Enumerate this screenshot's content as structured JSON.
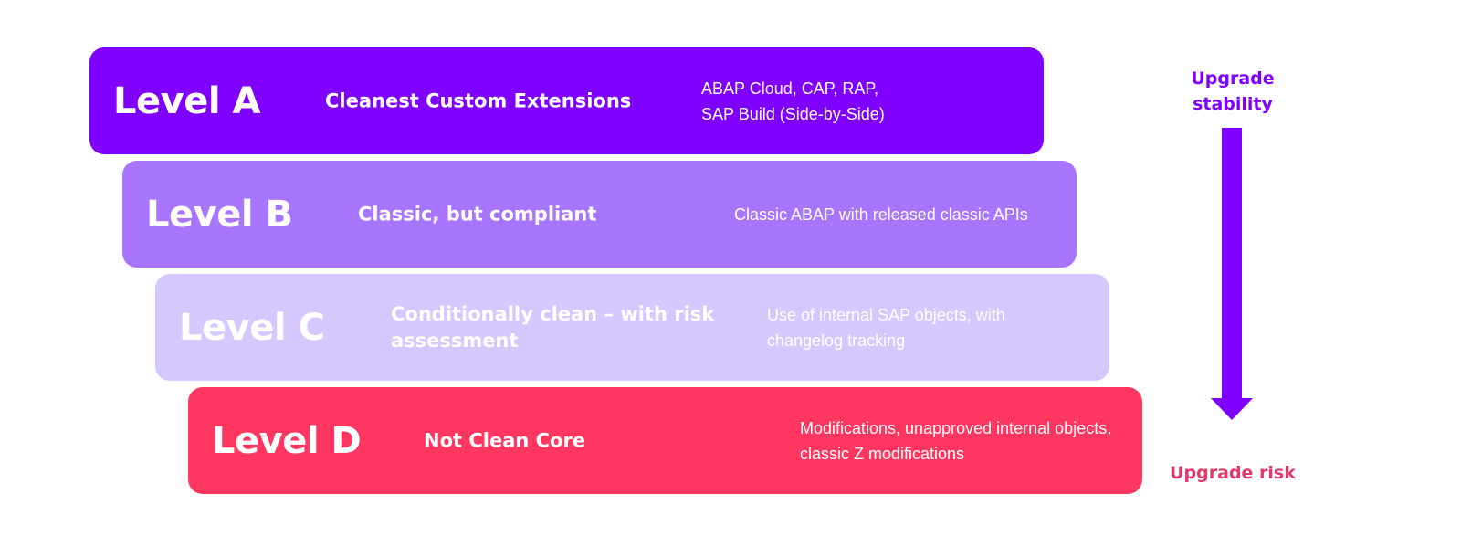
{
  "levels": [
    {
      "name": "Level A",
      "description": "Cleanest Custom Extensions",
      "detail": "ABAP Cloud, CAP, RAP, SAP Build (Side-by-Side)",
      "color": "#8000ff"
    },
    {
      "name": "Level B",
      "description": "Classic, but compliant",
      "detail": "Classic ABAP with released classic APIs",
      "color": "#a775ff"
    },
    {
      "name": "Level C",
      "description": "Conditionally clean – with risk assessment",
      "detail": "Use of internal SAP objects, with changelog tracking",
      "color": "#d6c7ff"
    },
    {
      "name": "Level D",
      "description": "Not Clean Core",
      "detail": "Modifications, unapproved internal objects, classic Z modifications",
      "color": "#ff3660"
    }
  ],
  "axis": {
    "top_label": "Upgrade stability",
    "bottom_label": "Upgrade risk",
    "top_color": "#8000ff",
    "bottom_color": "#e03a6a",
    "arrow_color": "#8000ff",
    "arrow_icon": "arrow-down-icon"
  }
}
